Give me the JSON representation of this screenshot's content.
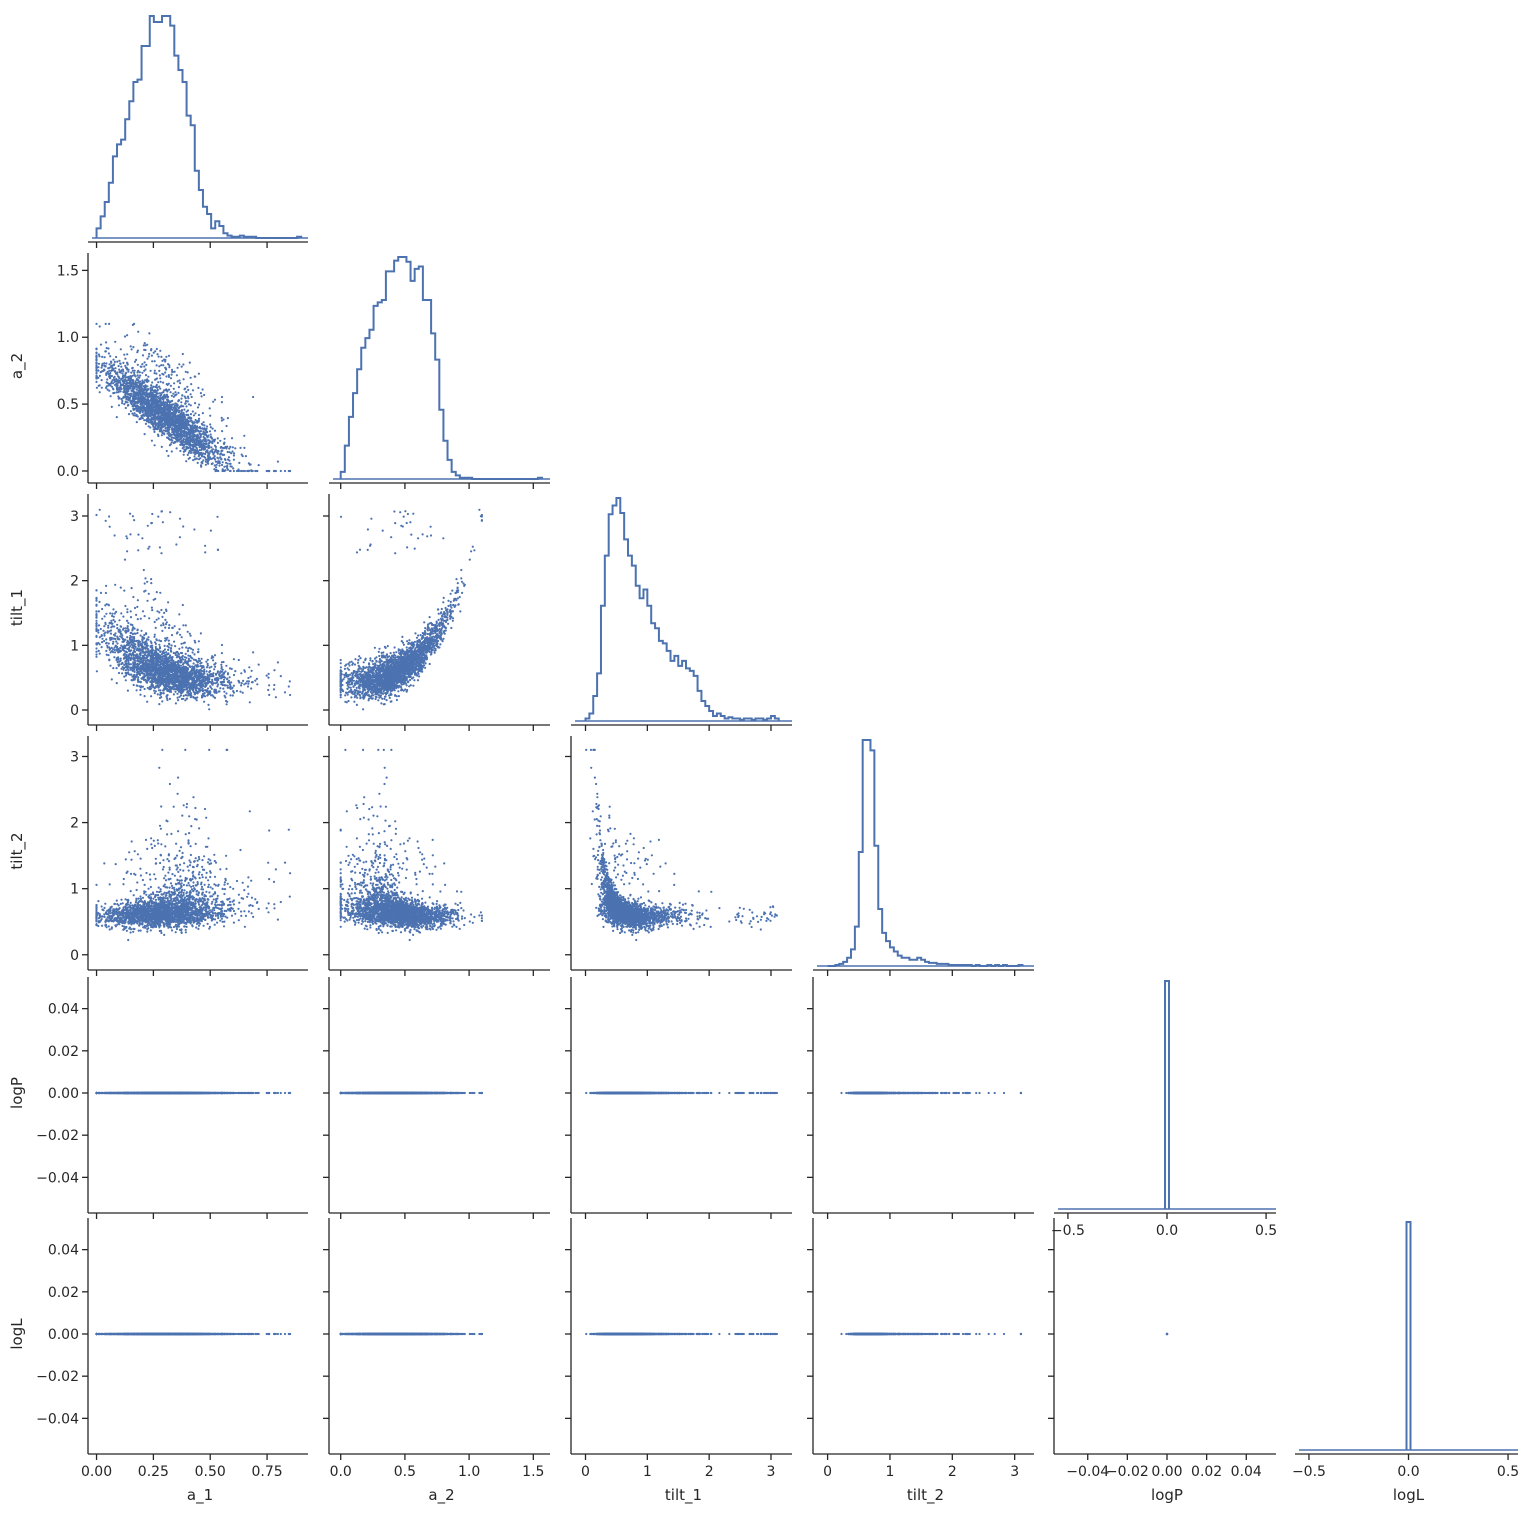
{
  "chart_data": {
    "type": "scatter",
    "title": "",
    "variables": [
      "a_1",
      "a_2",
      "tilt_1",
      "tilt_2",
      "logP",
      "logL"
    ],
    "layout": "corner pair plot (lower triangle scatter, diagonal step histograms)",
    "color": "#4c72b0",
    "grid": false,
    "axes": {
      "a_1": {
        "lim": [
          -0.02,
          0.93
        ],
        "ticks": [
          0.0,
          0.25,
          0.5,
          0.75
        ],
        "tick_labels": [
          "0.00",
          "0.25",
          "0.50",
          "0.75"
        ]
      },
      "a_2": {
        "lim": [
          -0.06,
          1.63
        ],
        "ticks": [
          0.0,
          0.5,
          1.0,
          1.5
        ],
        "tick_labels": [
          "0.0",
          "0.5",
          "1.0",
          "1.5"
        ]
      },
      "tilt_1": {
        "lim": [
          -0.17,
          3.34
        ],
        "ticks": [
          0,
          1,
          2,
          3
        ],
        "tick_labels": [
          "0",
          "1",
          "2",
          "3"
        ]
      },
      "tilt_2": {
        "lim": [
          -0.17,
          3.31
        ],
        "ticks": [
          0,
          1,
          2,
          3
        ],
        "tick_labels": [
          "0",
          "1",
          "2",
          "3"
        ]
      },
      "logP": {
        "lim": [
          -0.055,
          0.055
        ],
        "ticks": [
          -0.04,
          -0.02,
          0.0,
          0.02,
          0.04
        ],
        "tick_labels": [
          "−0.04",
          "−0.02",
          "0.00",
          "0.02",
          "0.04"
        ],
        "diag_lim": [
          -0.55,
          0.55
        ],
        "diag_ticks": [
          -0.5,
          0.0,
          0.5
        ],
        "diag_tick_labels": [
          "−0.5",
          "0.0",
          "0.5"
        ]
      },
      "logL": {
        "lim": [
          -0.055,
          0.055
        ],
        "ticks": [
          -0.04,
          -0.02,
          0.0,
          0.02,
          0.04
        ],
        "tick_labels": [
          "−0.04",
          "−0.02",
          "0.00",
          "0.02",
          "0.04"
        ],
        "diag_lim": [
          -0.55,
          0.55
        ],
        "diag_ticks": [
          -0.5,
          0.0,
          0.5
        ],
        "diag_tick_labels": [
          "−0.5",
          "0.0",
          "0.5"
        ]
      }
    },
    "histograms": {
      "a_1": {
        "bin_edges": [
          0.0,
          0.018,
          0.036,
          0.054,
          0.072,
          0.09,
          0.108,
          0.126,
          0.144,
          0.162,
          0.18,
          0.198,
          0.216,
          0.234,
          0.252,
          0.27,
          0.288,
          0.306,
          0.324,
          0.342,
          0.36,
          0.378,
          0.396,
          0.414,
          0.432,
          0.45,
          0.468,
          0.486,
          0.504,
          0.522,
          0.54,
          0.558,
          0.576,
          0.594,
          0.612,
          0.63,
          0.648,
          0.666,
          0.684,
          0.702,
          0.72,
          0.738,
          0.756,
          0.774,
          0.792,
          0.81,
          0.828,
          0.846,
          0.864,
          0.882,
          0.9
        ],
        "counts": [
          8,
          18,
          30,
          46,
          68,
          78,
          82,
          99,
          114,
          130,
          132,
          160,
          160,
          185,
          180,
          180,
          185,
          185,
          177,
          152,
          140,
          130,
          102,
          94,
          56,
          40,
          26,
          20,
          8,
          14,
          10,
          4,
          2,
          1,
          1,
          2,
          1,
          1,
          1,
          0,
          0,
          0,
          0,
          0,
          0,
          0,
          0,
          0,
          0,
          1
        ]
      },
      "a_2": {
        "bin_edges": [
          0.0,
          0.032,
          0.064,
          0.096,
          0.128,
          0.16,
          0.192,
          0.224,
          0.256,
          0.288,
          0.32,
          0.352,
          0.384,
          0.416,
          0.448,
          0.48,
          0.512,
          0.544,
          0.576,
          0.608,
          0.64,
          0.672,
          0.704,
          0.736,
          0.768,
          0.8,
          0.832,
          0.864,
          0.896,
          0.928,
          0.96,
          0.992,
          1.024,
          1.056,
          1.088,
          1.12,
          1.152,
          1.184,
          1.216,
          1.248,
          1.28,
          1.312,
          1.344,
          1.376,
          1.408,
          1.44,
          1.472,
          1.504,
          1.536,
          1.568
        ],
        "counts": [
          6,
          28,
          52,
          72,
          92,
          110,
          118,
          125,
          145,
          148,
          150,
          174,
          174,
          183,
          186,
          186,
          182,
          166,
          176,
          178,
          150,
          150,
          122,
          100,
          58,
          32,
          16,
          6,
          3,
          1,
          1,
          1,
          0,
          0,
          0,
          0,
          0,
          0,
          0,
          0,
          0,
          0,
          0,
          0,
          0,
          0,
          0,
          0,
          1
        ]
      },
      "tilt_1": {
        "bin_edges": [
          0.0,
          0.0625,
          0.125,
          0.1875,
          0.25,
          0.3125,
          0.375,
          0.4375,
          0.5,
          0.5625,
          0.625,
          0.6875,
          0.75,
          0.8125,
          0.875,
          0.9375,
          1.0,
          1.0625,
          1.125,
          1.1875,
          1.25,
          1.3125,
          1.375,
          1.4375,
          1.5,
          1.5625,
          1.625,
          1.6875,
          1.75,
          1.8125,
          1.875,
          1.9375,
          2.0,
          2.0625,
          2.125,
          2.1875,
          2.25,
          2.3125,
          2.375,
          2.4375,
          2.5,
          2.5625,
          2.625,
          2.6875,
          2.75,
          2.8125,
          2.875,
          2.9375,
          3.0,
          3.0625,
          3.125
        ],
        "counts": [
          2,
          6,
          20,
          38,
          92,
          132,
          165,
          172,
          178,
          166,
          145,
          132,
          124,
          108,
          98,
          105,
          92,
          78,
          74,
          64,
          62,
          56,
          48,
          52,
          44,
          48,
          42,
          40,
          36,
          24,
          16,
          12,
          8,
          4,
          6,
          4,
          2,
          3,
          2,
          2,
          1,
          2,
          2,
          1,
          2,
          2,
          1,
          2,
          4,
          2
        ]
      },
      "tilt_2": {
        "bin_edges": [
          0.0,
          0.0625,
          0.125,
          0.1875,
          0.25,
          0.3125,
          0.375,
          0.4375,
          0.5,
          0.5625,
          0.625,
          0.6875,
          0.75,
          0.8125,
          0.875,
          0.9375,
          1.0,
          1.0625,
          1.125,
          1.1875,
          1.25,
          1.3125,
          1.375,
          1.4375,
          1.5,
          1.5625,
          1.625,
          1.6875,
          1.75,
          1.8125,
          1.875,
          1.9375,
          2.0,
          2.0625,
          2.125,
          2.1875,
          2.25,
          2.3125,
          2.375,
          2.4375,
          2.5,
          2.5625,
          2.625,
          2.6875,
          2.75,
          2.8125,
          2.875,
          2.9375,
          3.0,
          3.0625,
          3.125
        ],
        "counts": [
          0,
          0,
          1,
          2,
          4,
          8,
          16,
          38,
          110,
          218,
          218,
          208,
          116,
          55,
          32,
          24,
          18,
          14,
          10,
          8,
          8,
          6,
          6,
          8,
          6,
          4,
          3,
          3,
          2,
          2,
          2,
          1,
          1,
          1,
          1,
          1,
          1,
          0,
          1,
          0,
          0,
          1,
          0,
          1,
          0,
          1,
          0,
          0,
          0,
          1
        ]
      },
      "logP": {
        "bin_edges": [
          -0.01,
          0.01
        ],
        "counts": [
          1
        ]
      },
      "logL": {
        "bin_edges": [
          -0.01,
          0.01
        ],
        "counts": [
          1
        ]
      }
    }
  }
}
